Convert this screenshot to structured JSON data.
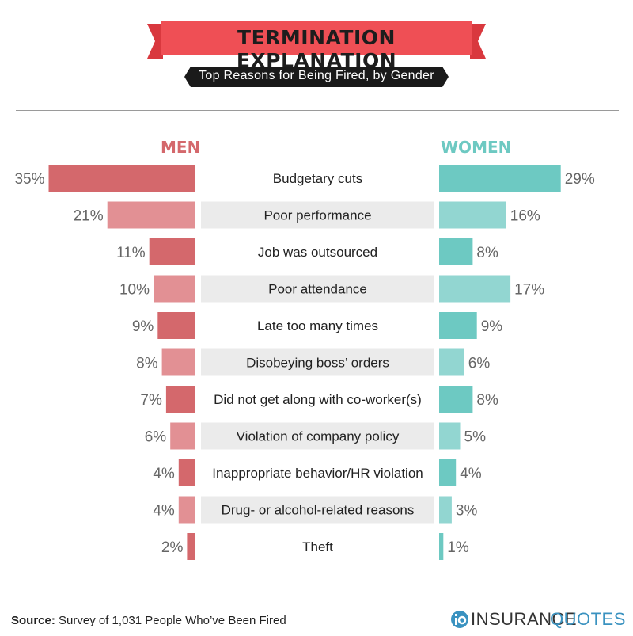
{
  "header": {
    "title": "TERMINATION EXPLANATION",
    "subtitle": "Top Reasons for Being Fired, by Gender"
  },
  "columns": {
    "men_label": "MEN",
    "women_label": "WOMEN"
  },
  "colors": {
    "title_ribbon": "#ef4f55",
    "subtitle_band": "#1a1a1a",
    "men_dark": "#d4686c",
    "men_light": "#e29094",
    "women_dark": "#6dc9c2",
    "women_light": "#92d6d1",
    "row_band": "#ebebeb"
  },
  "chart_data": {
    "type": "bar",
    "categories": [
      "Budgetary cuts",
      "Poor performance",
      "Job was outsourced",
      "Poor attendance",
      "Late too many times",
      "Disobeying boss’ orders",
      "Did not get along with co-worker(s)",
      "Violation of company policy",
      "Inappropriate behavior/HR violation",
      "Drug- or alcohol-related reasons",
      "Theft"
    ],
    "series": [
      {
        "name": "MEN",
        "values": [
          35,
          21,
          11,
          10,
          9,
          8,
          7,
          6,
          4,
          4,
          2
        ]
      },
      {
        "name": "WOMEN",
        "values": [
          29,
          16,
          8,
          17,
          9,
          6,
          8,
          5,
          4,
          3,
          1
        ]
      }
    ],
    "value_labels": {
      "men": [
        "35%",
        "21%",
        "11%",
        "10%",
        "9%",
        "8%",
        "7%",
        "6%",
        "4%",
        "4%",
        "2%"
      ],
      "women": [
        "29%",
        "16%",
        "8%",
        "17%",
        "9%",
        "6%",
        "8%",
        "5%",
        "4%",
        "3%",
        "1%"
      ]
    },
    "unit": "%",
    "orientation": "horizontal-butterfly",
    "grid": false
  },
  "footer": {
    "source_label": "Source:",
    "source_text": " Survey of 1,031 People Who’ve Been Fired",
    "logo_part1": "INSURANCE",
    "logo_part2": "QUOTES"
  }
}
